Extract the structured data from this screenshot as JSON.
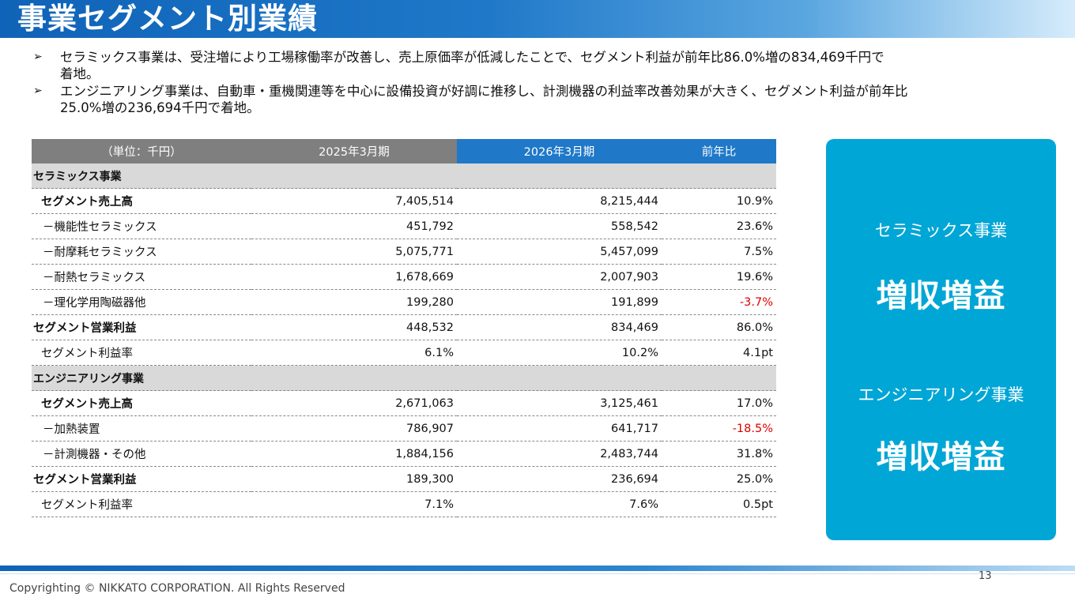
{
  "slide": {
    "title": "事業セグメント別業績",
    "bullets": [
      {
        "lines": [
          "セラミックス事業は、受注増により工場稼働率が改善し、売上原価率が低減したことで、セグメント利益が前年比86.0%増の834,469千円で",
          "着地。"
        ]
      },
      {
        "lines": [
          "エンジニアリング事業は、自動車・重機関連等を中心に設備投資が好調に推移し、計測機器の利益率改善効果が大きく、セグメント利益が前年比",
          "25.0%増の236,694千円で着地。"
        ]
      }
    ],
    "bullet_mark": "➢"
  },
  "table": {
    "header": {
      "unit": "（単位：千円）",
      "period1": "2025年3月期",
      "period2": "2026年3月期",
      "yoy": "前年比"
    },
    "rows": [
      {
        "label": "セラミックス事業",
        "type": "section"
      },
      {
        "label": "セグメント売上高",
        "v1": "7,405,514",
        "v2": "8,215,444",
        "yoy": "10.9%",
        "type": "lv1"
      },
      {
        "label": "－機能性セラミックス",
        "v1": "451,792",
        "v2": "558,542",
        "yoy": "23.6%",
        "type": "lv2"
      },
      {
        "label": "－耐摩耗セラミックス",
        "v1": "5,075,771",
        "v2": "5,457,099",
        "yoy": "7.5%",
        "type": "lv2"
      },
      {
        "label": "－耐熱セラミックス",
        "v1": "1,678,669",
        "v2": "2,007,903",
        "yoy": "19.6%",
        "type": "lv2"
      },
      {
        "label": "－理化学用陶磁器他",
        "v1": "199,280",
        "v2": "191,899",
        "yoy": "-3.7%",
        "type": "lv2",
        "negative": true
      },
      {
        "label": "セグメント営業利益",
        "v1": "448,532",
        "v2": "834,469",
        "yoy": "86.0%",
        "type": "lv0"
      },
      {
        "label": "セグメント利益率",
        "v1": "6.1%",
        "v2": "10.2%",
        "yoy": "4.1pt",
        "type": "lvr"
      },
      {
        "label": "エンジニアリング事業",
        "type": "section"
      },
      {
        "label": "セグメント売上高",
        "v1": "2,671,063",
        "v2": "3,125,461",
        "yoy": "17.0%",
        "type": "lv1"
      },
      {
        "label": "－加熱装置",
        "v1": "786,907",
        "v2": "641,717",
        "yoy": "-18.5%",
        "type": "lv2",
        "negative": true
      },
      {
        "label": "－計測機器・その他",
        "v1": "1,884,156",
        "v2": "2,483,744",
        "yoy": "31.8%",
        "type": "lv2"
      },
      {
        "label": "セグメント営業利益",
        "v1": "189,300",
        "v2": "236,694",
        "yoy": "25.0%",
        "type": "lv0"
      },
      {
        "label": "セグメント利益率",
        "v1": "7.1%",
        "v2": "7.6%",
        "yoy": "0.5pt",
        "type": "lvr"
      }
    ]
  },
  "side_panel": {
    "segments": [
      {
        "name": "セラミックス事業",
        "result": "増収増益"
      },
      {
        "name": "エンジニアリング事業",
        "result": "増収増益"
      }
    ]
  },
  "footer": {
    "page_number": "13",
    "copyright": "Copyrighting © NIKKATO CORPORATION. All Rights Reserved"
  },
  "colors": {
    "title_blue": "#1f78c8",
    "header_gray": "#7f7f7f",
    "section_gray": "#d9d9d9",
    "panel_cyan": "#00a6d6",
    "negative_red": "#e00000"
  }
}
